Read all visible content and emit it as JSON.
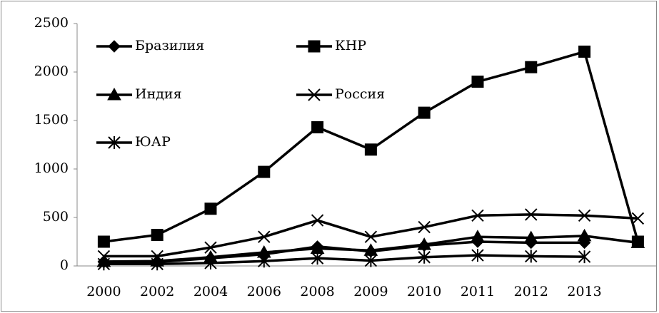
{
  "chart_data": {
    "type": "line",
    "categories": [
      "2000",
      "2002",
      "2004",
      "2006",
      "2008",
      "2009",
      "2010",
      "2011",
      "2012",
      "2013",
      null
    ],
    "series": [
      {
        "name": "Бразилия",
        "color": "#000000",
        "marker": "diamond",
        "values": [
          40,
          40,
          80,
          120,
          200,
          150,
          210,
          250,
          240,
          240,
          null
        ]
      },
      {
        "name": "КНР",
        "color": "#000000",
        "marker": "square",
        "values": [
          250,
          320,
          590,
          970,
          1430,
          1200,
          1580,
          1900,
          2050,
          2210,
          250
        ]
      },
      {
        "name": "Индия",
        "color": "#000000",
        "marker": "triangle",
        "values": [
          45,
          50,
          90,
          140,
          180,
          160,
          220,
          300,
          290,
          310,
          240
        ]
      },
      {
        "name": "Россия",
        "color": "#000000",
        "marker": "x",
        "values": [
          100,
          100,
          190,
          300,
          470,
          300,
          400,
          520,
          530,
          520,
          490
        ]
      },
      {
        "name": "ЮАР",
        "color": "#000000",
        "marker": "star",
        "values": [
          20,
          20,
          30,
          50,
          80,
          55,
          90,
          110,
          100,
          95,
          null
        ]
      }
    ],
    "ylim": [
      0,
      2500
    ],
    "yticks": [
      0,
      500,
      1000,
      1500,
      2000,
      2500
    ],
    "grid": false
  }
}
